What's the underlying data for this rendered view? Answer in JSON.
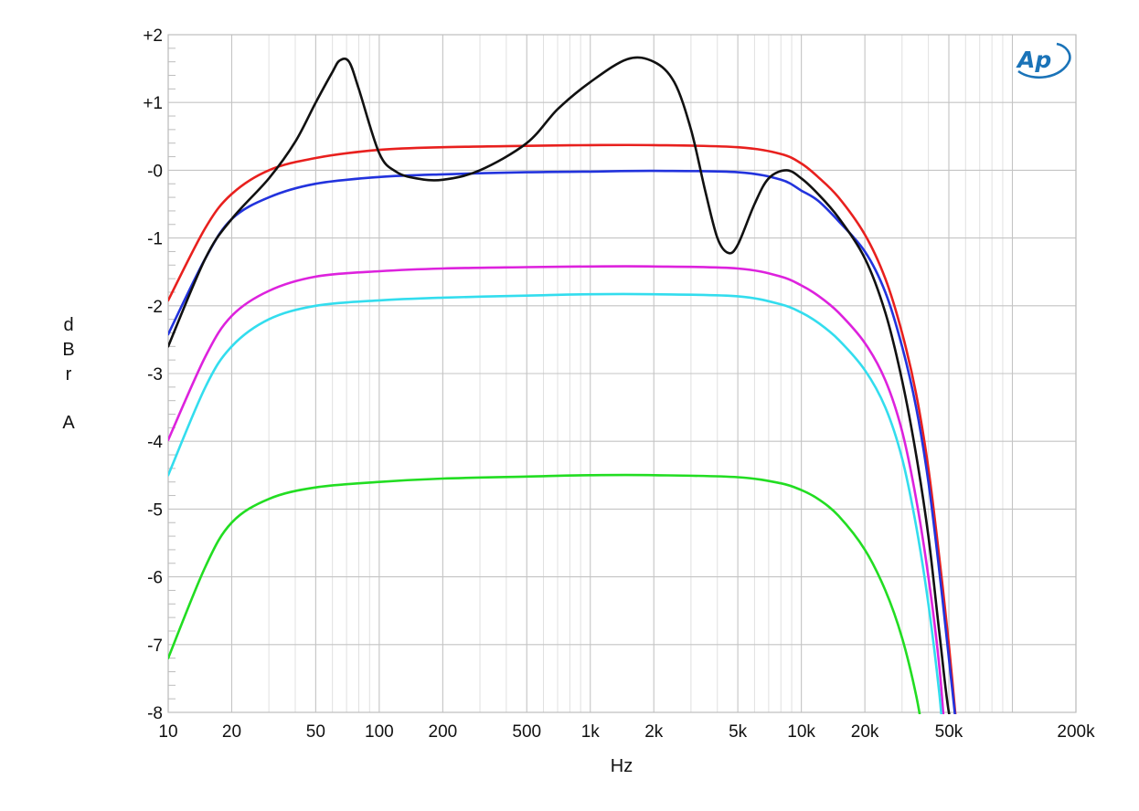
{
  "chart_data": {
    "type": "line",
    "title": "",
    "xlabel": "Hz",
    "ylabel": "dBr A",
    "xscale": "log",
    "xlim": [
      10,
      200000
    ],
    "ylim": [
      -8,
      2
    ],
    "grid": true,
    "legend": "none",
    "logo": "AP",
    "x_ticks": [
      {
        "value": 10,
        "label": "10"
      },
      {
        "value": 20,
        "label": "20"
      },
      {
        "value": 50,
        "label": "50"
      },
      {
        "value": 100,
        "label": "100"
      },
      {
        "value": 200,
        "label": "200"
      },
      {
        "value": 500,
        "label": "500"
      },
      {
        "value": 1000,
        "label": "1k"
      },
      {
        "value": 2000,
        "label": "2k"
      },
      {
        "value": 5000,
        "label": "5k"
      },
      {
        "value": 10000,
        "label": "10k"
      },
      {
        "value": 20000,
        "label": "20k"
      },
      {
        "value": 50000,
        "label": "50k"
      },
      {
        "value": 200000,
        "label": "200k"
      }
    ],
    "y_ticks": [
      {
        "value": 2,
        "label": "+2"
      },
      {
        "value": 1,
        "label": "+1"
      },
      {
        "value": 0,
        "label": "-0"
      },
      {
        "value": -1,
        "label": "-1"
      },
      {
        "value": -2,
        "label": "-2"
      },
      {
        "value": -3,
        "label": "-3"
      },
      {
        "value": -4,
        "label": "-4"
      },
      {
        "value": -5,
        "label": "-5"
      },
      {
        "value": -6,
        "label": "-6"
      },
      {
        "value": -7,
        "label": "-7"
      },
      {
        "value": -8,
        "label": "-8"
      }
    ],
    "series": [
      {
        "color": "#e8201e",
        "points": [
          [
            10,
            -1.92
          ],
          [
            15,
            -0.85
          ],
          [
            20,
            -0.35
          ],
          [
            30,
            0.0
          ],
          [
            50,
            0.18
          ],
          [
            100,
            0.3
          ],
          [
            200,
            0.34
          ],
          [
            500,
            0.36
          ],
          [
            1000,
            0.37
          ],
          [
            2000,
            0.37
          ],
          [
            5000,
            0.34
          ],
          [
            8000,
            0.24
          ],
          [
            10000,
            0.1
          ],
          [
            12000,
            -0.1
          ],
          [
            15000,
            -0.4
          ],
          [
            20000,
            -0.95
          ],
          [
            25000,
            -1.6
          ],
          [
            30000,
            -2.4
          ],
          [
            35000,
            -3.3
          ],
          [
            40000,
            -4.4
          ],
          [
            45000,
            -5.7
          ],
          [
            50000,
            -7.0
          ],
          [
            55000,
            -8.4
          ]
        ]
      },
      {
        "color": "#2233dd",
        "points": [
          [
            10,
            -2.42
          ],
          [
            15,
            -1.3
          ],
          [
            20,
            -0.72
          ],
          [
            30,
            -0.4
          ],
          [
            50,
            -0.2
          ],
          [
            100,
            -0.1
          ],
          [
            200,
            -0.06
          ],
          [
            500,
            -0.03
          ],
          [
            1000,
            -0.02
          ],
          [
            2000,
            -0.01
          ],
          [
            5000,
            -0.03
          ],
          [
            8000,
            -0.14
          ],
          [
            10000,
            -0.3
          ],
          [
            12000,
            -0.45
          ],
          [
            15000,
            -0.75
          ],
          [
            20000,
            -1.2
          ],
          [
            25000,
            -1.8
          ],
          [
            30000,
            -2.6
          ],
          [
            35000,
            -3.5
          ],
          [
            40000,
            -4.6
          ],
          [
            45000,
            -5.9
          ],
          [
            50000,
            -7.2
          ],
          [
            55000,
            -8.4
          ]
        ]
      },
      {
        "color": "#dd22dd",
        "points": [
          [
            10,
            -3.98
          ],
          [
            15,
            -2.75
          ],
          [
            20,
            -2.15
          ],
          [
            30,
            -1.78
          ],
          [
            50,
            -1.57
          ],
          [
            100,
            -1.49
          ],
          [
            200,
            -1.45
          ],
          [
            500,
            -1.43
          ],
          [
            1000,
            -1.42
          ],
          [
            2000,
            -1.42
          ],
          [
            5000,
            -1.45
          ],
          [
            8000,
            -1.57
          ],
          [
            10000,
            -1.7
          ],
          [
            12000,
            -1.85
          ],
          [
            15000,
            -2.1
          ],
          [
            20000,
            -2.55
          ],
          [
            25000,
            -3.1
          ],
          [
            30000,
            -3.85
          ],
          [
            35000,
            -4.85
          ],
          [
            40000,
            -6.0
          ],
          [
            45000,
            -7.3
          ],
          [
            48000,
            -8.4
          ]
        ]
      },
      {
        "color": "#33ddee",
        "points": [
          [
            10,
            -4.5
          ],
          [
            15,
            -3.2
          ],
          [
            20,
            -2.6
          ],
          [
            30,
            -2.2
          ],
          [
            50,
            -2.0
          ],
          [
            100,
            -1.92
          ],
          [
            200,
            -1.88
          ],
          [
            500,
            -1.85
          ],
          [
            1000,
            -1.83
          ],
          [
            2000,
            -1.83
          ],
          [
            5000,
            -1.86
          ],
          [
            8000,
            -1.98
          ],
          [
            10000,
            -2.1
          ],
          [
            12000,
            -2.25
          ],
          [
            15000,
            -2.5
          ],
          [
            20000,
            -2.95
          ],
          [
            25000,
            -3.5
          ],
          [
            30000,
            -4.25
          ],
          [
            35000,
            -5.25
          ],
          [
            40000,
            -6.4
          ],
          [
            45000,
            -7.7
          ],
          [
            47000,
            -8.4
          ]
        ]
      },
      {
        "color": "#22dd22",
        "points": [
          [
            10,
            -7.2
          ],
          [
            15,
            -5.85
          ],
          [
            20,
            -5.2
          ],
          [
            30,
            -4.85
          ],
          [
            50,
            -4.68
          ],
          [
            100,
            -4.6
          ],
          [
            200,
            -4.55
          ],
          [
            500,
            -4.52
          ],
          [
            1000,
            -4.5
          ],
          [
            2000,
            -4.5
          ],
          [
            5000,
            -4.53
          ],
          [
            8000,
            -4.62
          ],
          [
            10000,
            -4.72
          ],
          [
            12000,
            -4.85
          ],
          [
            15000,
            -5.1
          ],
          [
            20000,
            -5.6
          ],
          [
            25000,
            -6.2
          ],
          [
            30000,
            -6.9
          ],
          [
            35000,
            -7.75
          ],
          [
            38000,
            -8.4
          ]
        ]
      },
      {
        "color": "#111111",
        "points": [
          [
            10,
            -2.6
          ],
          [
            15,
            -1.3
          ],
          [
            20,
            -0.72
          ],
          [
            30,
            -0.12
          ],
          [
            40,
            0.42
          ],
          [
            50,
            1.0
          ],
          [
            60,
            1.45
          ],
          [
            65,
            1.62
          ],
          [
            72,
            1.6
          ],
          [
            80,
            1.2
          ],
          [
            100,
            0.25
          ],
          [
            120,
            -0.02
          ],
          [
            150,
            -0.12
          ],
          [
            200,
            -0.14
          ],
          [
            300,
            0.0
          ],
          [
            500,
            0.4
          ],
          [
            700,
            0.9
          ],
          [
            1000,
            1.3
          ],
          [
            1500,
            1.64
          ],
          [
            2000,
            1.6
          ],
          [
            2500,
            1.3
          ],
          [
            3000,
            0.6
          ],
          [
            3500,
            -0.3
          ],
          [
            4000,
            -1.0
          ],
          [
            4500,
            -1.22
          ],
          [
            5000,
            -1.1
          ],
          [
            6000,
            -0.5
          ],
          [
            7000,
            -0.12
          ],
          [
            8500,
            0.0
          ],
          [
            10000,
            -0.12
          ],
          [
            12000,
            -0.35
          ],
          [
            15000,
            -0.7
          ],
          [
            20000,
            -1.3
          ],
          [
            25000,
            -2.1
          ],
          [
            30000,
            -3.1
          ],
          [
            35000,
            -4.2
          ],
          [
            40000,
            -5.4
          ],
          [
            45000,
            -6.8
          ],
          [
            50000,
            -8.0
          ],
          [
            55000,
            -8.4
          ]
        ]
      }
    ]
  }
}
